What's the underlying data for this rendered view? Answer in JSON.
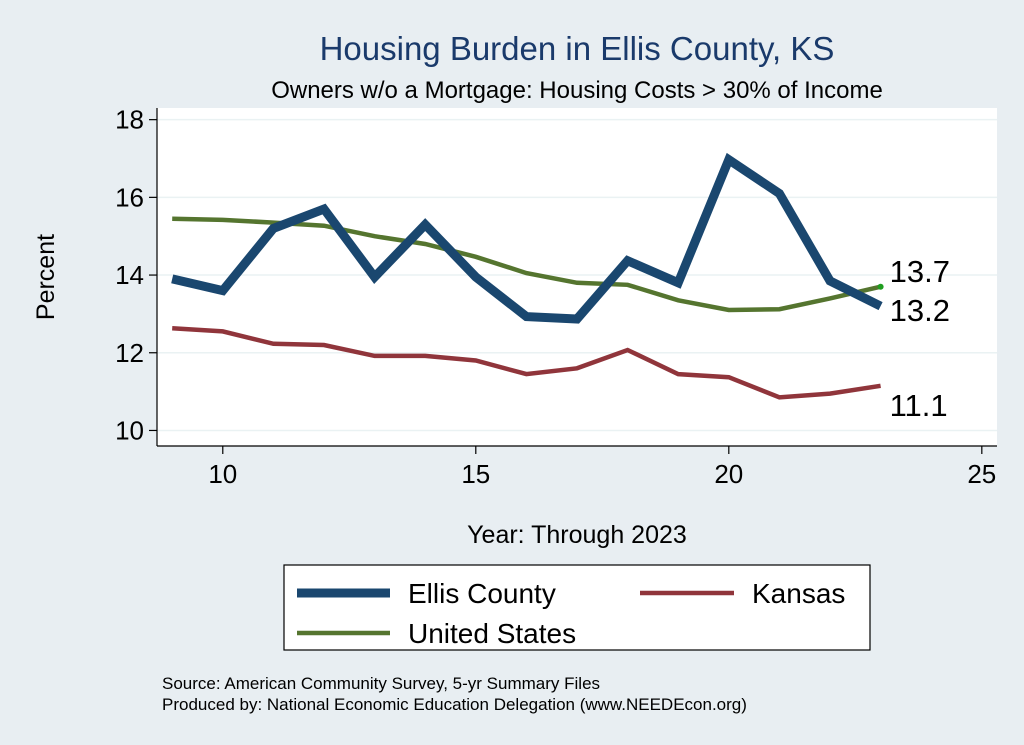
{
  "chart_data": {
    "type": "line",
    "title": "Housing Burden in Ellis County, KS",
    "subtitle": "Owners w/o a Mortgage: Housing Costs > 30% of Income",
    "xlabel": "Year: Through 2023",
    "ylabel": "Percent",
    "xlim": [
      8.7,
      25.3
    ],
    "ylim": [
      9.6,
      18.3
    ],
    "xticks": [
      10,
      15,
      20,
      25
    ],
    "yticks": [
      10,
      12,
      14,
      16,
      18
    ],
    "x": [
      9,
      10,
      11,
      12,
      13,
      14,
      15,
      16,
      17,
      18,
      19,
      20,
      21,
      22,
      23
    ],
    "series": [
      {
        "name": "Ellis County",
        "color": "#1a476f",
        "values": [
          13.9,
          13.6,
          15.2,
          15.7,
          13.95,
          15.3,
          13.95,
          12.93,
          12.87,
          14.37,
          13.8,
          16.97,
          16.1,
          13.85,
          13.2
        ],
        "end_label": "13.2"
      },
      {
        "name": "Kansas",
        "color": "#90353b",
        "values": [
          12.63,
          12.55,
          12.23,
          12.2,
          11.92,
          11.92,
          11.8,
          11.45,
          11.6,
          12.07,
          11.45,
          11.37,
          10.85,
          10.95,
          11.15
        ],
        "end_label": "11.1"
      },
      {
        "name": "United States",
        "color": "#55752f",
        "values": [
          15.45,
          15.42,
          15.35,
          15.27,
          15.0,
          14.8,
          14.47,
          14.05,
          13.8,
          13.75,
          13.35,
          13.1,
          13.12,
          13.4,
          13.7
        ],
        "end_label": "13.7"
      }
    ],
    "legend": {
      "placement": "bottom",
      "entries": [
        "Ellis County",
        "Kansas",
        "United States"
      ]
    },
    "source_lines": [
      "Source: American Community Survey, 5-yr Summary Files",
      "Produced by: National Economic Education Delegation (www.NEEDEcon.org)"
    ]
  }
}
